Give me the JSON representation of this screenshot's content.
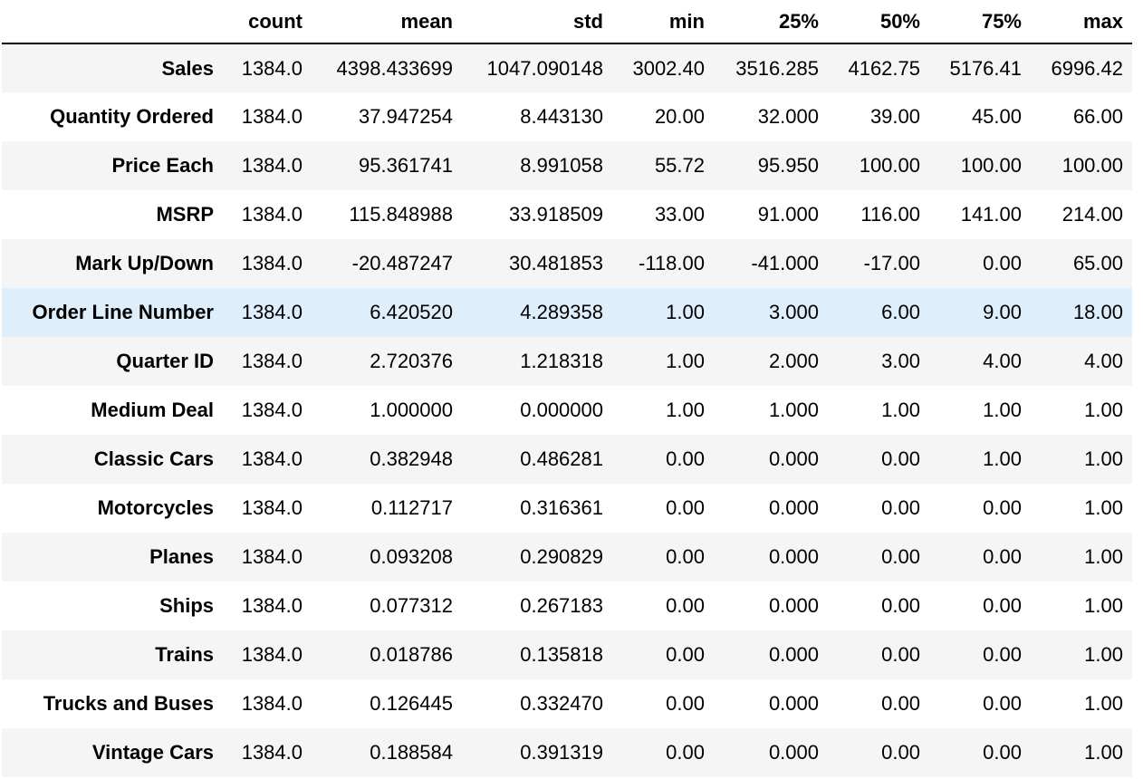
{
  "table": {
    "columns": [
      "",
      "count",
      "mean",
      "std",
      "min",
      "25%",
      "50%",
      "75%",
      "max"
    ],
    "rows": [
      {
        "label": "Sales",
        "values": [
          "1384.0",
          "4398.433699",
          "1047.090148",
          "3002.40",
          "3516.285",
          "4162.75",
          "5176.41",
          "6996.42"
        ]
      },
      {
        "label": "Quantity Ordered",
        "values": [
          "1384.0",
          "37.947254",
          "8.443130",
          "20.00",
          "32.000",
          "39.00",
          "45.00",
          "66.00"
        ]
      },
      {
        "label": "Price Each",
        "values": [
          "1384.0",
          "95.361741",
          "8.991058",
          "55.72",
          "95.950",
          "100.00",
          "100.00",
          "100.00"
        ]
      },
      {
        "label": "MSRP",
        "values": [
          "1384.0",
          "115.848988",
          "33.918509",
          "33.00",
          "91.000",
          "116.00",
          "141.00",
          "214.00"
        ]
      },
      {
        "label": "Mark Up/Down",
        "values": [
          "1384.0",
          "-20.487247",
          "30.481853",
          "-118.00",
          "-41.000",
          "-17.00",
          "0.00",
          "65.00"
        ]
      },
      {
        "label": "Order Line Number",
        "values": [
          "1384.0",
          "6.420520",
          "4.289358",
          "1.00",
          "3.000",
          "6.00",
          "9.00",
          "18.00"
        ]
      },
      {
        "label": "Quarter ID",
        "values": [
          "1384.0",
          "2.720376",
          "1.218318",
          "1.00",
          "2.000",
          "3.00",
          "4.00",
          "4.00"
        ]
      },
      {
        "label": "Medium Deal",
        "values": [
          "1384.0",
          "1.000000",
          "0.000000",
          "1.00",
          "1.000",
          "1.00",
          "1.00",
          "1.00"
        ]
      },
      {
        "label": "Classic Cars",
        "values": [
          "1384.0",
          "0.382948",
          "0.486281",
          "0.00",
          "0.000",
          "0.00",
          "1.00",
          "1.00"
        ]
      },
      {
        "label": "Motorcycles",
        "values": [
          "1384.0",
          "0.112717",
          "0.316361",
          "0.00",
          "0.000",
          "0.00",
          "0.00",
          "1.00"
        ]
      },
      {
        "label": "Planes",
        "values": [
          "1384.0",
          "0.093208",
          "0.290829",
          "0.00",
          "0.000",
          "0.00",
          "0.00",
          "1.00"
        ]
      },
      {
        "label": "Ships",
        "values": [
          "1384.0",
          "0.077312",
          "0.267183",
          "0.00",
          "0.000",
          "0.00",
          "0.00",
          "1.00"
        ]
      },
      {
        "label": "Trains",
        "values": [
          "1384.0",
          "0.018786",
          "0.135818",
          "0.00",
          "0.000",
          "0.00",
          "0.00",
          "1.00"
        ]
      },
      {
        "label": "Trucks and Buses",
        "values": [
          "1384.0",
          "0.126445",
          "0.332470",
          "0.00",
          "0.000",
          "0.00",
          "0.00",
          "1.00"
        ]
      },
      {
        "label": "Vintage Cars",
        "values": [
          "1384.0",
          "0.188584",
          "0.391319",
          "0.00",
          "0.000",
          "0.00",
          "0.00",
          "1.00"
        ]
      }
    ],
    "highlighted_row": "Order Line Number"
  },
  "colors": {
    "stripe": "#f5f5f5",
    "hover": "#dfeefb",
    "border": "#000000"
  }
}
